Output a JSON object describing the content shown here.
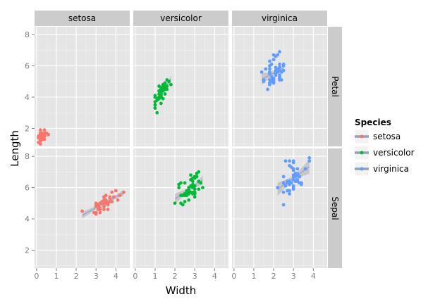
{
  "chart_data": {
    "type": "scatter",
    "facets": {
      "columns": [
        "setosa",
        "versicolor",
        "virginica"
      ],
      "rows": [
        "Petal",
        "Sepal"
      ]
    },
    "xlabel": "Width",
    "ylabel": "Length",
    "xlim": [
      -0.1,
      4.7
    ],
    "ylim": [
      0.85,
      8.5
    ],
    "xticks": [
      0,
      1,
      2,
      3,
      4
    ],
    "yticks": [
      2,
      4,
      6,
      8
    ],
    "smooth": "linear fit with confidence band",
    "legend": {
      "title": "Species",
      "position": "right",
      "entries": [
        {
          "label": "setosa",
          "color": "#F8766D"
        },
        {
          "label": "versicolor",
          "color": "#00BA38"
        },
        {
          "label": "virginica",
          "color": "#619CFF"
        }
      ]
    },
    "panels": [
      {
        "column": "setosa",
        "row": "Petal",
        "color": "#F8766D",
        "points": [
          [
            0.2,
            1.4
          ],
          [
            0.2,
            1.4
          ],
          [
            0.2,
            1.3
          ],
          [
            0.2,
            1.5
          ],
          [
            0.2,
            1.4
          ],
          [
            0.4,
            1.7
          ],
          [
            0.3,
            1.4
          ],
          [
            0.2,
            1.5
          ],
          [
            0.2,
            1.4
          ],
          [
            0.1,
            1.5
          ],
          [
            0.2,
            1.5
          ],
          [
            0.2,
            1.6
          ],
          [
            0.1,
            1.4
          ],
          [
            0.1,
            1.1
          ],
          [
            0.2,
            1.2
          ],
          [
            0.4,
            1.5
          ],
          [
            0.4,
            1.3
          ],
          [
            0.3,
            1.4
          ],
          [
            0.3,
            1.7
          ],
          [
            0.3,
            1.5
          ],
          [
            0.2,
            1.7
          ],
          [
            0.4,
            1.5
          ],
          [
            0.2,
            1.0
          ],
          [
            0.5,
            1.7
          ],
          [
            0.2,
            1.9
          ],
          [
            0.2,
            1.6
          ],
          [
            0.4,
            1.6
          ],
          [
            0.2,
            1.5
          ],
          [
            0.2,
            1.4
          ],
          [
            0.2,
            1.6
          ],
          [
            0.2,
            1.6
          ],
          [
            0.4,
            1.5
          ],
          [
            0.1,
            1.5
          ],
          [
            0.2,
            1.4
          ],
          [
            0.2,
            1.5
          ],
          [
            0.2,
            1.2
          ],
          [
            0.2,
            1.3
          ],
          [
            0.1,
            1.4
          ],
          [
            0.2,
            1.3
          ],
          [
            0.2,
            1.5
          ],
          [
            0.3,
            1.3
          ],
          [
            0.3,
            1.3
          ],
          [
            0.2,
            1.3
          ],
          [
            0.6,
            1.6
          ],
          [
            0.4,
            1.9
          ],
          [
            0.3,
            1.4
          ],
          [
            0.2,
            1.6
          ],
          [
            0.2,
            1.4
          ],
          [
            0.2,
            1.5
          ],
          [
            0.2,
            1.4
          ]
        ]
      },
      {
        "column": "versicolor",
        "row": "Petal",
        "color": "#00BA38",
        "points": [
          [
            1.4,
            4.7
          ],
          [
            1.5,
            4.5
          ],
          [
            1.5,
            4.9
          ],
          [
            1.3,
            4.0
          ],
          [
            1.5,
            4.6
          ],
          [
            1.3,
            4.5
          ],
          [
            1.6,
            4.7
          ],
          [
            1.0,
            3.3
          ],
          [
            1.3,
            4.6
          ],
          [
            1.4,
            3.9
          ],
          [
            1.0,
            3.5
          ],
          [
            1.5,
            4.2
          ],
          [
            1.0,
            4.0
          ],
          [
            1.4,
            4.7
          ],
          [
            1.3,
            3.6
          ],
          [
            1.4,
            4.4
          ],
          [
            1.5,
            4.5
          ],
          [
            1.0,
            4.1
          ],
          [
            1.5,
            4.5
          ],
          [
            1.1,
            3.9
          ],
          [
            1.8,
            4.8
          ],
          [
            1.3,
            4.0
          ],
          [
            1.5,
            4.9
          ],
          [
            1.2,
            4.7
          ],
          [
            1.3,
            4.3
          ],
          [
            1.4,
            4.4
          ],
          [
            1.4,
            4.8
          ],
          [
            1.7,
            5.0
          ],
          [
            1.5,
            4.5
          ],
          [
            1.0,
            3.5
          ],
          [
            1.1,
            3.8
          ],
          [
            1.0,
            3.7
          ],
          [
            1.2,
            3.9
          ],
          [
            1.6,
            5.1
          ],
          [
            1.5,
            4.5
          ],
          [
            1.6,
            4.5
          ],
          [
            1.5,
            4.7
          ],
          [
            1.3,
            4.4
          ],
          [
            1.3,
            4.1
          ],
          [
            1.3,
            4.0
          ],
          [
            1.2,
            4.4
          ],
          [
            1.4,
            4.6
          ],
          [
            1.2,
            4.0
          ],
          [
            1.0,
            3.3
          ],
          [
            1.3,
            4.2
          ],
          [
            1.2,
            4.2
          ],
          [
            1.3,
            4.2
          ],
          [
            1.3,
            4.3
          ],
          [
            1.1,
            3.0
          ],
          [
            1.3,
            4.1
          ]
        ]
      },
      {
        "column": "virginica",
        "row": "Petal",
        "color": "#619CFF",
        "points": [
          [
            2.5,
            6.0
          ],
          [
            1.9,
            5.1
          ],
          [
            2.1,
            5.9
          ],
          [
            1.8,
            5.6
          ],
          [
            2.2,
            5.8
          ],
          [
            2.1,
            6.6
          ],
          [
            1.7,
            4.5
          ],
          [
            1.8,
            6.3
          ],
          [
            1.8,
            5.8
          ],
          [
            2.5,
            6.1
          ],
          [
            2.0,
            5.1
          ],
          [
            1.9,
            5.3
          ],
          [
            2.1,
            5.5
          ],
          [
            2.0,
            5.0
          ],
          [
            2.4,
            5.1
          ],
          [
            2.3,
            5.3
          ],
          [
            1.8,
            5.5
          ],
          [
            2.2,
            6.7
          ],
          [
            2.3,
            6.9
          ],
          [
            1.5,
            5.0
          ],
          [
            2.3,
            5.7
          ],
          [
            2.0,
            4.9
          ],
          [
            2.0,
            6.7
          ],
          [
            1.8,
            4.9
          ],
          [
            2.1,
            5.7
          ],
          [
            1.8,
            6.0
          ],
          [
            1.8,
            4.8
          ],
          [
            1.8,
            4.9
          ],
          [
            2.1,
            5.6
          ],
          [
            1.6,
            5.8
          ],
          [
            1.9,
            6.1
          ],
          [
            2.0,
            6.4
          ],
          [
            2.2,
            5.6
          ],
          [
            1.5,
            5.1
          ],
          [
            1.4,
            5.6
          ],
          [
            2.3,
            6.1
          ],
          [
            2.4,
            5.6
          ],
          [
            1.8,
            5.5
          ],
          [
            1.8,
            4.8
          ],
          [
            2.1,
            5.4
          ],
          [
            2.4,
            5.6
          ],
          [
            2.3,
            5.1
          ],
          [
            1.9,
            5.1
          ],
          [
            2.3,
            5.9
          ],
          [
            2.5,
            5.7
          ],
          [
            2.3,
            5.2
          ],
          [
            1.9,
            5.0
          ],
          [
            2.0,
            5.2
          ],
          [
            2.3,
            5.4
          ],
          [
            1.8,
            5.1
          ]
        ]
      },
      {
        "column": "setosa",
        "row": "Sepal",
        "color": "#F8766D",
        "points": [
          [
            3.5,
            5.1
          ],
          [
            3.0,
            4.9
          ],
          [
            3.2,
            4.7
          ],
          [
            3.1,
            4.6
          ],
          [
            3.6,
            5.0
          ],
          [
            3.9,
            5.4
          ],
          [
            3.4,
            4.6
          ],
          [
            3.4,
            5.0
          ],
          [
            2.9,
            4.4
          ],
          [
            3.1,
            4.9
          ],
          [
            3.7,
            5.4
          ],
          [
            3.4,
            4.8
          ],
          [
            3.0,
            4.8
          ],
          [
            3.0,
            4.3
          ],
          [
            4.0,
            5.8
          ],
          [
            4.4,
            5.7
          ],
          [
            3.9,
            5.4
          ],
          [
            3.5,
            5.1
          ],
          [
            3.8,
            5.7
          ],
          [
            3.8,
            5.1
          ],
          [
            3.4,
            5.4
          ],
          [
            3.7,
            5.1
          ],
          [
            3.6,
            4.6
          ],
          [
            3.3,
            5.1
          ],
          [
            3.4,
            4.8
          ],
          [
            3.0,
            5.0
          ],
          [
            3.4,
            5.0
          ],
          [
            3.5,
            5.2
          ],
          [
            3.4,
            5.2
          ],
          [
            3.2,
            4.7
          ],
          [
            3.1,
            4.8
          ],
          [
            3.4,
            5.4
          ],
          [
            4.1,
            5.2
          ],
          [
            4.2,
            5.5
          ],
          [
            3.1,
            4.9
          ],
          [
            3.2,
            5.0
          ],
          [
            3.5,
            5.5
          ],
          [
            3.6,
            4.9
          ],
          [
            3.0,
            4.4
          ],
          [
            3.4,
            5.1
          ],
          [
            3.5,
            5.0
          ],
          [
            2.3,
            4.5
          ],
          [
            3.2,
            4.4
          ],
          [
            3.5,
            5.0
          ],
          [
            3.8,
            5.1
          ],
          [
            3.0,
            4.8
          ],
          [
            3.8,
            5.1
          ],
          [
            3.2,
            4.6
          ],
          [
            3.7,
            5.3
          ],
          [
            3.3,
            5.0
          ]
        ]
      },
      {
        "column": "versicolor",
        "row": "Sepal",
        "color": "#00BA38",
        "points": [
          [
            3.2,
            7.0
          ],
          [
            3.2,
            6.4
          ],
          [
            3.1,
            6.9
          ],
          [
            2.3,
            5.5
          ],
          [
            2.8,
            6.5
          ],
          [
            2.8,
            5.7
          ],
          [
            3.3,
            6.3
          ],
          [
            2.4,
            4.9
          ],
          [
            2.9,
            6.6
          ],
          [
            2.7,
            5.2
          ],
          [
            2.0,
            5.0
          ],
          [
            3.0,
            5.9
          ],
          [
            2.2,
            6.0
          ],
          [
            2.9,
            6.1
          ],
          [
            2.9,
            5.6
          ],
          [
            3.1,
            6.7
          ],
          [
            3.0,
            5.6
          ],
          [
            2.7,
            5.8
          ],
          [
            2.2,
            6.2
          ],
          [
            2.5,
            5.6
          ],
          [
            3.2,
            5.9
          ],
          [
            2.8,
            6.1
          ],
          [
            2.5,
            6.3
          ],
          [
            2.8,
            6.1
          ],
          [
            2.9,
            6.4
          ],
          [
            3.0,
            6.6
          ],
          [
            2.8,
            6.8
          ],
          [
            3.0,
            6.7
          ],
          [
            2.9,
            6.0
          ],
          [
            2.6,
            5.7
          ],
          [
            2.4,
            5.5
          ],
          [
            2.4,
            5.5
          ],
          [
            2.7,
            5.8
          ],
          [
            2.7,
            6.0
          ],
          [
            3.0,
            5.4
          ],
          [
            3.4,
            6.0
          ],
          [
            3.1,
            6.7
          ],
          [
            2.3,
            6.3
          ],
          [
            3.0,
            5.6
          ],
          [
            2.5,
            5.5
          ],
          [
            2.6,
            5.5
          ],
          [
            3.0,
            6.1
          ],
          [
            2.6,
            5.8
          ],
          [
            2.3,
            5.0
          ],
          [
            2.7,
            5.6
          ],
          [
            3.0,
            5.7
          ],
          [
            2.9,
            5.7
          ],
          [
            2.9,
            6.2
          ],
          [
            2.5,
            5.1
          ],
          [
            2.8,
            5.7
          ]
        ]
      },
      {
        "column": "virginica",
        "row": "Sepal",
        "color": "#619CFF",
        "points": [
          [
            3.3,
            6.3
          ],
          [
            2.7,
            5.8
          ],
          [
            3.0,
            7.1
          ],
          [
            2.9,
            6.3
          ],
          [
            3.0,
            6.5
          ],
          [
            3.0,
            7.6
          ],
          [
            2.5,
            4.9
          ],
          [
            2.9,
            7.3
          ],
          [
            2.5,
            6.7
          ],
          [
            3.6,
            7.2
          ],
          [
            3.2,
            6.5
          ],
          [
            2.7,
            6.4
          ],
          [
            3.0,
            6.8
          ],
          [
            2.5,
            5.7
          ],
          [
            2.8,
            5.8
          ],
          [
            3.2,
            6.4
          ],
          [
            3.0,
            6.5
          ],
          [
            3.8,
            7.7
          ],
          [
            2.6,
            7.7
          ],
          [
            2.2,
            6.0
          ],
          [
            3.2,
            6.9
          ],
          [
            2.8,
            5.6
          ],
          [
            2.8,
            7.7
          ],
          [
            2.7,
            6.3
          ],
          [
            3.3,
            6.7
          ],
          [
            3.2,
            7.2
          ],
          [
            2.8,
            6.2
          ],
          [
            3.0,
            6.1
          ],
          [
            2.8,
            6.4
          ],
          [
            3.0,
            7.2
          ],
          [
            2.8,
            7.4
          ],
          [
            3.8,
            7.9
          ],
          [
            2.8,
            6.4
          ],
          [
            2.8,
            6.3
          ],
          [
            2.6,
            6.1
          ],
          [
            3.0,
            7.7
          ],
          [
            3.4,
            6.3
          ],
          [
            3.1,
            6.4
          ],
          [
            3.0,
            6.0
          ],
          [
            3.1,
            6.9
          ],
          [
            3.1,
            6.7
          ],
          [
            3.1,
            6.9
          ],
          [
            2.7,
            5.8
          ],
          [
            3.2,
            6.8
          ],
          [
            3.3,
            6.7
          ],
          [
            3.0,
            6.7
          ],
          [
            2.5,
            6.3
          ],
          [
            3.0,
            6.5
          ],
          [
            3.4,
            6.2
          ],
          [
            3.0,
            5.9
          ]
        ]
      }
    ]
  }
}
